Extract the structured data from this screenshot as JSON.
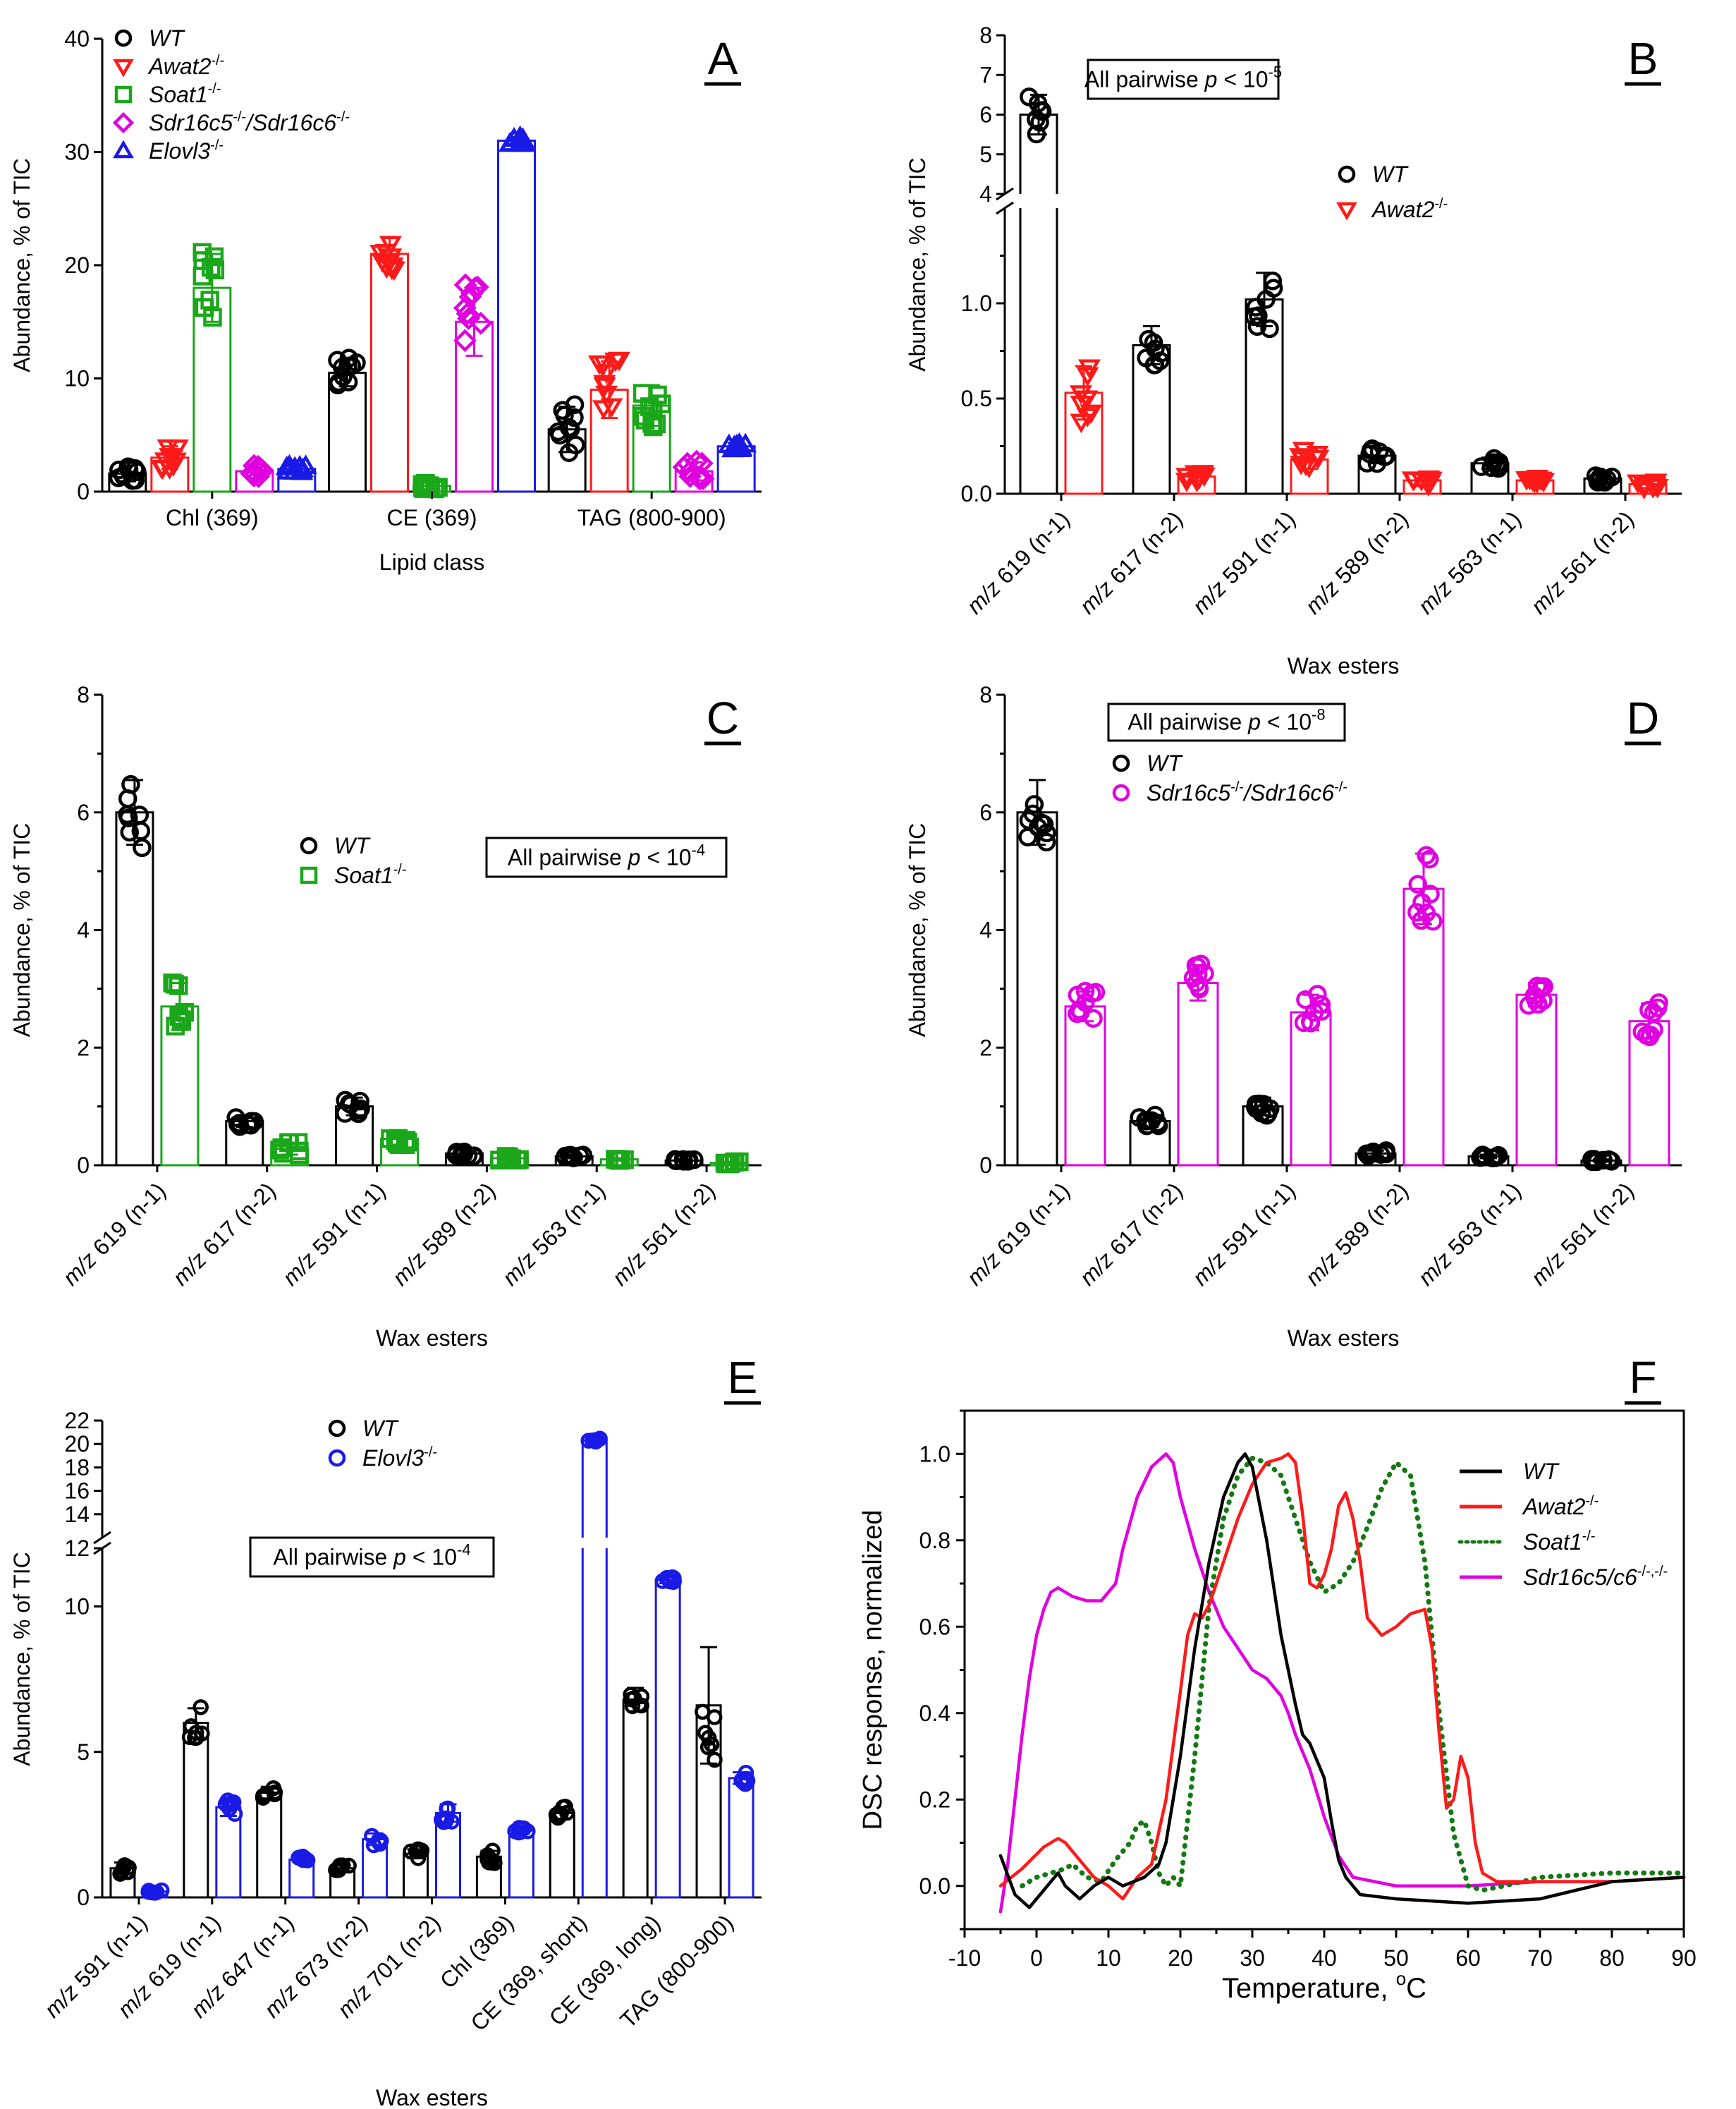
{
  "colors": {
    "WT": "#000000",
    "Awat2": "#ff1a1a",
    "Soat1": "#1aa71a",
    "Sdr": "#e000e0",
    "Elovl3": "#1a1ae6",
    "Soat1_dsc": "#117a11"
  },
  "chart_data": [
    {
      "id": "A",
      "panel_letter": "A",
      "type": "bar",
      "ylabel": "Abundance, % of TIC",
      "xlabel": "Lipid class",
      "ylim": [
        0,
        40
      ],
      "yticks": [
        "0",
        "10",
        "20",
        "30",
        "40"
      ],
      "categories": [
        "Chl (369)",
        "CE (369)",
        "TAG (800-900)"
      ],
      "series": [
        {
          "key": "WT",
          "name": "WT",
          "sup": "",
          "marker": "circle",
          "values": [
            1.6,
            10.5,
            5.5
          ],
          "err": [
            0.7,
            1.2,
            2.0
          ]
        },
        {
          "key": "Awat2",
          "name": "Awat2",
          "sup": "-/-",
          "marker": "tri-down",
          "values": [
            3.0,
            21.0,
            9.0
          ],
          "err": [
            1.0,
            1.5,
            2.5
          ]
        },
        {
          "key": "Soat1",
          "name": "Soat1",
          "sup": "-/-",
          "marker": "square",
          "values": [
            18.0,
            0.5,
            7.6
          ],
          "err": [
            3.0,
            0.3,
            1.8
          ]
        },
        {
          "key": "Sdr",
          "name": "Sdr16c5",
          "sup": "-/-",
          "name2": "/Sdr16c6",
          "sup2": "-/-",
          "marker": "diamond",
          "values": [
            1.8,
            15.0,
            1.8
          ],
          "err": [
            0.6,
            3.0,
            0.8
          ]
        },
        {
          "key": "Elovl3",
          "name": "Elovl3",
          "sup": "-/-",
          "marker": "tri-up",
          "values": [
            2.0,
            31.0,
            4.0
          ],
          "err": [
            0.3,
            0.3,
            0.3
          ]
        }
      ]
    },
    {
      "id": "B",
      "panel_letter": "B",
      "type": "bar",
      "ylabel": "Abundance, % of TIC",
      "xlabel": "Wax esters",
      "annotation": {
        "text": "All pairwise ",
        "p": "p",
        "lt": " < 10",
        "exp": "-5"
      },
      "ylim_low": [
        0,
        1.5
      ],
      "ylim_high": [
        4,
        8
      ],
      "yticks_low": [
        "0.0",
        "0.5",
        "1.0"
      ],
      "yticks_high": [
        "4",
        "5",
        "6",
        "7",
        "8"
      ],
      "categories": [
        {
          "mz": "m/z",
          "rest": " 619 (n-1)"
        },
        {
          "mz": "m/z",
          "rest": " 617 (n-2)"
        },
        {
          "mz": "m/z",
          "rest": " 591 (n-1)"
        },
        {
          "mz": "m/z",
          "rest": " 589 (n-2)"
        },
        {
          "mz": "m/z",
          "rest": " 563 (n-1)"
        },
        {
          "mz": "m/z",
          "rest": " 561 (n-2)"
        }
      ],
      "series": [
        {
          "key": "WT",
          "name": "WT",
          "sup": "",
          "marker": "circle",
          "values": [
            6.0,
            0.78,
            1.02,
            0.2,
            0.16,
            0.08
          ],
          "err": [
            0.5,
            0.1,
            0.14,
            0.04,
            0.03,
            0.02
          ]
        },
        {
          "key": "Awat2",
          "name": "Awat2",
          "sup": "-/-",
          "marker": "tri-down",
          "values": [
            0.53,
            0.09,
            0.18,
            0.07,
            0.07,
            0.05
          ],
          "err": [
            0.14,
            0.02,
            0.05,
            0.03,
            0.02,
            0.02
          ]
        }
      ]
    },
    {
      "id": "C",
      "panel_letter": "C",
      "type": "bar",
      "ylabel": "Abundance, % of TIC",
      "xlabel": "Wax esters",
      "annotation": {
        "text": "All pairwise ",
        "p": "p",
        "lt": " < 10",
        "exp": "-4"
      },
      "ylim": [
        0,
        8
      ],
      "yticks": [
        "0",
        "2",
        "4",
        "6",
        "8"
      ],
      "categories": [
        {
          "mz": "m/z",
          "rest": " 619 (n-1)"
        },
        {
          "mz": "m/z",
          "rest": " 617 (n-2)"
        },
        {
          "mz": "m/z",
          "rest": " 591 (n-1)"
        },
        {
          "mz": "m/z",
          "rest": " 589 (n-2)"
        },
        {
          "mz": "m/z",
          "rest": " 563 (n-1)"
        },
        {
          "mz": "m/z",
          "rest": " 561 (n-2)"
        }
      ],
      "series": [
        {
          "key": "WT",
          "name": "WT",
          "sup": "",
          "marker": "circle",
          "values": [
            6.0,
            0.75,
            1.0,
            0.2,
            0.15,
            0.08
          ],
          "err": [
            0.55,
            0.1,
            0.15,
            0.05,
            0.03,
            0.02
          ]
        },
        {
          "key": "Soat1",
          "name": "Soat1",
          "sup": "-/-",
          "marker": "square",
          "values": [
            2.7,
            0.28,
            0.45,
            0.12,
            0.1,
            0.04
          ],
          "err": [
            0.4,
            0.1,
            0.1,
            0.03,
            0.02,
            0.02
          ]
        }
      ]
    },
    {
      "id": "D",
      "panel_letter": "D",
      "type": "bar",
      "ylabel": "Abundance, % of TIC",
      "xlabel": "Wax esters",
      "annotation": {
        "text": "All pairwise ",
        "p": "p",
        "lt": " < 10",
        "exp": "-8"
      },
      "ylim": [
        0,
        8
      ],
      "yticks": [
        "0",
        "2",
        "4",
        "6",
        "8"
      ],
      "categories": [
        {
          "mz": "m/z",
          "rest": " 619 (n-1)"
        },
        {
          "mz": "m/z",
          "rest": " 617 (n-2)"
        },
        {
          "mz": "m/z",
          "rest": " 591 (n-1)"
        },
        {
          "mz": "m/z",
          "rest": " 589 (n-2)"
        },
        {
          "mz": "m/z",
          "rest": " 563 (n-1)"
        },
        {
          "mz": "m/z",
          "rest": " 561 (n-2)"
        }
      ],
      "series": [
        {
          "key": "WT",
          "name": "WT",
          "sup": "",
          "marker": "circle",
          "values": [
            6.0,
            0.75,
            1.0,
            0.2,
            0.15,
            0.08
          ],
          "err": [
            0.55,
            0.1,
            0.15,
            0.05,
            0.03,
            0.02
          ]
        },
        {
          "key": "Sdr",
          "name": "Sdr16c5",
          "sup": "-/-",
          "name2": "/Sdr16c6",
          "sup2": "-/-",
          "marker": "circle",
          "values": [
            2.7,
            3.1,
            2.6,
            4.7,
            2.9,
            2.45
          ],
          "err": [
            0.25,
            0.3,
            0.3,
            0.6,
            0.2,
            0.3
          ]
        }
      ]
    },
    {
      "id": "E",
      "panel_letter": "E",
      "type": "bar",
      "ylabel": "Abundance, % of TIC",
      "xlabel": "Wax esters",
      "annotation": {
        "text": "All pairwise ",
        "p": "p",
        "lt": " < 10",
        "exp": "-4"
      },
      "ylim_low": [
        0,
        12
      ],
      "ylim_high": [
        12,
        22
      ],
      "yticks_low": [
        "0",
        "5",
        "10"
      ],
      "yticks_high": [
        "12",
        "14",
        "16",
        "18",
        "20",
        "22"
      ],
      "categories": [
        {
          "mz": "m/z",
          "rest": " 591 (n-1)"
        },
        {
          "mz": "m/z",
          "rest": " 619 (n-1)"
        },
        {
          "mz": "m/z",
          "rest": " 647 (n-1)"
        },
        {
          "mz": "m/z",
          "rest": " 673 (n-2)"
        },
        {
          "mz": "m/z",
          "rest": " 701 (n-2)"
        },
        {
          "mz": "",
          "rest": "Chl (369)"
        },
        {
          "mz": "",
          "rest": "CE (369, short)"
        },
        {
          "mz": "",
          "rest": "CE (369, long)"
        },
        {
          "mz": "",
          "rest": "TAG (800-900)"
        }
      ],
      "series": [
        {
          "key": "WT",
          "name": "WT",
          "sup": "",
          "marker": "circle",
          "values": [
            1.0,
            6.0,
            3.6,
            1.0,
            1.5,
            1.4,
            2.9,
            6.8,
            6.6
          ],
          "err": [
            0.2,
            0.5,
            0.2,
            0.1,
            0.15,
            0.2,
            0.2,
            0.4,
            2.0
          ]
        },
        {
          "key": "Elovl3",
          "name": "Elovl3",
          "sup": "-/-",
          "marker": "circle",
          "values": [
            0.2,
            3.1,
            1.3,
            2.0,
            2.9,
            2.3,
            20.3,
            10.9,
            4.1
          ],
          "err": [
            0.05,
            0.3,
            0.1,
            0.2,
            0.3,
            0.1,
            0.2,
            0.1,
            0.2
          ]
        }
      ]
    },
    {
      "id": "F",
      "panel_letter": "F",
      "type": "line",
      "ylabel": "DSC response, normalized",
      "xlabel": "Temperature, ",
      "xlabel_sup": "o",
      "xlabel_unit": "C",
      "xlim": [
        -10,
        90
      ],
      "ylim": [
        -0.1,
        1.1
      ],
      "xticks": [
        "-10",
        "0",
        "10",
        "20",
        "30",
        "40",
        "50",
        "60",
        "70",
        "80",
        "90"
      ],
      "yticks": [
        "0.0",
        "0.2",
        "0.4",
        "0.6",
        "0.8",
        "1.0"
      ],
      "series": [
        {
          "key": "WT",
          "name": "WT",
          "sup": "",
          "style": "solid",
          "x": [
            -5,
            -3,
            -1,
            1,
            3,
            4,
            6,
            8,
            10,
            12,
            15,
            17,
            18,
            20,
            22,
            24,
            26,
            28,
            29,
            30,
            32,
            34,
            36,
            37,
            38,
            40,
            41,
            42,
            43,
            45,
            50,
            60,
            70,
            75,
            80,
            90
          ],
          "y": [
            0.07,
            -0.02,
            -0.05,
            -0.01,
            0.03,
            0.0,
            -0.03,
            0.0,
            0.02,
            0.0,
            0.02,
            0.05,
            0.1,
            0.3,
            0.55,
            0.75,
            0.9,
            0.98,
            1.0,
            0.97,
            0.8,
            0.58,
            0.42,
            0.35,
            0.33,
            0.25,
            0.15,
            0.06,
            0.02,
            -0.02,
            -0.03,
            -0.04,
            -0.03,
            -0.01,
            0.01,
            0.02
          ]
        },
        {
          "key": "Awat2",
          "name": "Awat2",
          "sup": "-/-",
          "style": "solid",
          "x": [
            -5,
            -2,
            1,
            3,
            4,
            6,
            8,
            10,
            12,
            14,
            16,
            18,
            20,
            21,
            22,
            23,
            24,
            26,
            28,
            30,
            32,
            34,
            35,
            36,
            37,
            38,
            39,
            40,
            41,
            42,
            43,
            44,
            45,
            46,
            48,
            50,
            52,
            54,
            55,
            56,
            57,
            58,
            59,
            60,
            61,
            62,
            64,
            70,
            80,
            90
          ],
          "y": [
            0.0,
            0.04,
            0.09,
            0.11,
            0.1,
            0.06,
            0.02,
            0.0,
            -0.03,
            0.02,
            0.05,
            0.2,
            0.45,
            0.58,
            0.63,
            0.62,
            0.65,
            0.75,
            0.85,
            0.93,
            0.98,
            0.99,
            1.0,
            0.98,
            0.86,
            0.7,
            0.69,
            0.72,
            0.78,
            0.88,
            0.91,
            0.85,
            0.75,
            0.62,
            0.58,
            0.6,
            0.63,
            0.64,
            0.55,
            0.35,
            0.18,
            0.2,
            0.3,
            0.25,
            0.1,
            0.03,
            0.01,
            0.01,
            0.01,
            0.02
          ]
        },
        {
          "key": "Soat1",
          "name": "Soat1",
          "sup": "-/-",
          "style": "dotted",
          "x": [
            -2,
            0,
            2,
            4,
            5,
            7,
            9,
            11,
            12,
            13,
            14,
            15,
            16,
            17,
            18,
            19,
            20,
            22,
            24,
            26,
            28,
            30,
            32,
            34,
            36,
            38,
            40,
            42,
            44,
            46,
            48,
            50,
            52,
            54,
            56,
            58,
            60,
            62,
            65,
            70,
            80,
            90
          ],
          "y": [
            0.0,
            0.02,
            0.03,
            0.04,
            0.05,
            0.02,
            0.01,
            0.06,
            0.08,
            0.1,
            0.14,
            0.15,
            0.1,
            0.03,
            0.0,
            0.02,
            0.0,
            0.3,
            0.65,
            0.85,
            0.95,
            0.99,
            0.98,
            0.95,
            0.85,
            0.75,
            0.68,
            0.7,
            0.75,
            0.83,
            0.92,
            0.98,
            0.95,
            0.75,
            0.4,
            0.12,
            0.0,
            -0.01,
            0.0,
            0.02,
            0.03,
            0.03
          ]
        },
        {
          "key": "Sdr",
          "name": "Sdr16c5/c6",
          "sup": "-/-,-/-",
          "style": "solid",
          "x": [
            -5,
            -4,
            -3,
            -2,
            -1,
            0,
            1,
            2,
            3,
            4,
            5,
            7,
            9,
            11,
            12,
            14,
            16,
            18,
            19,
            20,
            22,
            24,
            26,
            28,
            30,
            32,
            33,
            34,
            35,
            36,
            38,
            40,
            42,
            44,
            50,
            60,
            70,
            80,
            90
          ],
          "y": [
            -0.06,
            0.05,
            0.2,
            0.35,
            0.48,
            0.58,
            0.64,
            0.68,
            0.69,
            0.68,
            0.67,
            0.66,
            0.66,
            0.7,
            0.78,
            0.9,
            0.97,
            1.0,
            0.98,
            0.9,
            0.78,
            0.68,
            0.6,
            0.55,
            0.5,
            0.48,
            0.46,
            0.44,
            0.4,
            0.35,
            0.27,
            0.16,
            0.07,
            0.02,
            0.0,
            0.0,
            0.01,
            0.01,
            0.02
          ]
        }
      ]
    }
  ]
}
